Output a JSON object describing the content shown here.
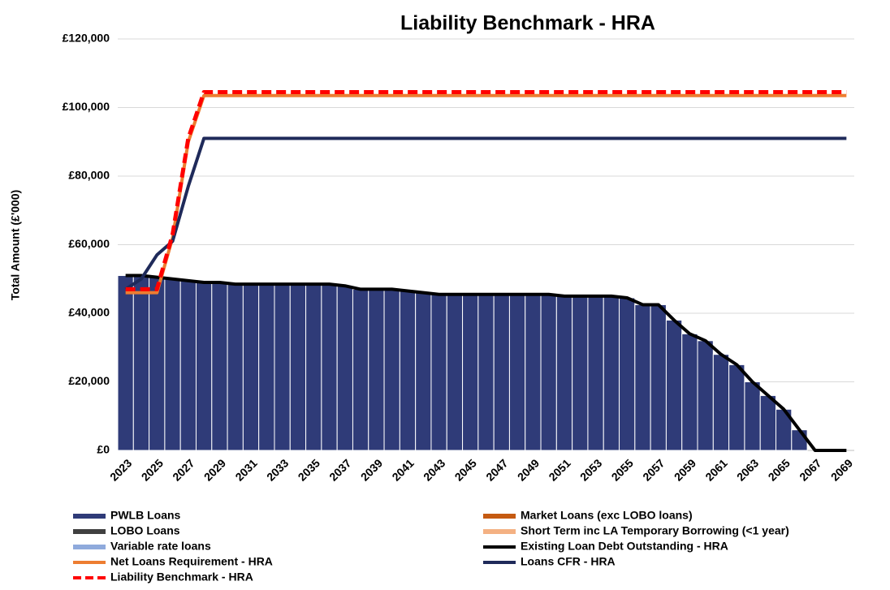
{
  "chart_data": {
    "type": "combo",
    "title": "Liability Benchmark - HRA",
    "y_label": "Total Amount (£'000)",
    "categories": [
      "2023",
      null,
      "2025",
      null,
      "2027",
      null,
      "2029",
      null,
      "2031",
      null,
      "2033",
      null,
      "2035",
      null,
      "2037",
      null,
      "2039",
      null,
      "2041",
      null,
      "2043",
      null,
      "2045",
      null,
      "2047",
      null,
      "2049",
      null,
      "2051",
      null,
      "2053",
      null,
      "2055",
      null,
      "2057",
      null,
      "2059",
      null,
      "2061",
      null,
      "2063",
      null,
      "2065",
      null,
      "2067",
      null,
      "2069"
    ],
    "ylim": [
      0,
      120000
    ],
    "yticks": [
      {
        "value": 0,
        "label": "£0"
      },
      {
        "value": 20000,
        "label": "£20,000"
      },
      {
        "value": 40000,
        "label": "£40,000"
      },
      {
        "value": 60000,
        "label": "£60,000"
      },
      {
        "value": 80000,
        "label": "£80,000"
      },
      {
        "value": 100000,
        "label": "£100,000"
      },
      {
        "value": 120000,
        "label": "£120,000"
      }
    ],
    "grid": true,
    "series": [
      {
        "name": "PWLB Loans",
        "type": "bar",
        "color": "#2f3b78",
        "values": [
          51000,
          51000,
          50500,
          50000,
          49500,
          49000,
          49000,
          48500,
          48500,
          48500,
          48500,
          48500,
          48500,
          48500,
          48000,
          47000,
          47000,
          47000,
          46500,
          46000,
          45500,
          45500,
          45500,
          45500,
          45500,
          45500,
          45500,
          45500,
          45000,
          45000,
          45000,
          45000,
          44500,
          42500,
          42500,
          38000,
          34000,
          32000,
          28000,
          25000,
          20000,
          16000,
          12000,
          6000,
          0,
          0,
          0
        ]
      },
      {
        "name": "Market Loans (exc LOBO loans)",
        "type": "bar",
        "color": "#c55a11",
        "values": [
          0,
          0,
          0,
          0,
          0,
          0,
          0,
          0,
          0,
          0,
          0,
          0,
          0,
          0,
          0,
          0,
          0,
          0,
          0,
          0,
          0,
          0,
          0,
          0,
          0,
          0,
          0,
          0,
          0,
          0,
          0,
          0,
          0,
          0,
          0,
          0,
          0,
          0,
          0,
          0,
          0,
          0,
          0,
          0,
          0,
          0,
          0
        ]
      },
      {
        "name": "LOBO Loans",
        "type": "bar",
        "color": "#404040",
        "values": [
          0,
          0,
          0,
          0,
          0,
          0,
          0,
          0,
          0,
          0,
          0,
          0,
          0,
          0,
          0,
          0,
          0,
          0,
          0,
          0,
          0,
          0,
          0,
          0,
          0,
          0,
          0,
          0,
          0,
          0,
          0,
          0,
          0,
          0,
          0,
          0,
          0,
          0,
          0,
          0,
          0,
          0,
          0,
          0,
          0,
          0,
          0
        ]
      },
      {
        "name": "Short Term inc LA Temporary Borrowing (<1 year)",
        "type": "bar",
        "color": "#f4b183",
        "values": [
          0,
          0,
          0,
          0,
          0,
          0,
          0,
          0,
          0,
          0,
          0,
          0,
          0,
          0,
          0,
          0,
          0,
          0,
          0,
          0,
          0,
          0,
          0,
          0,
          0,
          0,
          0,
          0,
          0,
          0,
          0,
          0,
          0,
          0,
          0,
          0,
          0,
          0,
          0,
          0,
          0,
          0,
          0,
          0,
          0,
          0,
          0
        ]
      },
      {
        "name": "Variable rate loans",
        "type": "bar",
        "color": "#8faadc",
        "values": [
          0,
          0,
          0,
          0,
          0,
          0,
          0,
          0,
          0,
          0,
          0,
          0,
          0,
          0,
          0,
          0,
          0,
          0,
          0,
          0,
          0,
          0,
          0,
          0,
          0,
          0,
          0,
          0,
          0,
          0,
          0,
          0,
          0,
          0,
          0,
          0,
          0,
          0,
          0,
          0,
          0,
          0,
          0,
          0,
          0,
          0,
          0
        ]
      },
      {
        "name": "Existing Loan Debt Outstanding - HRA",
        "type": "line",
        "color": "#000000",
        "values": [
          51000,
          51000,
          50500,
          50000,
          49500,
          49000,
          49000,
          48500,
          48500,
          48500,
          48500,
          48500,
          48500,
          48500,
          48000,
          47000,
          47000,
          47000,
          46500,
          46000,
          45500,
          45500,
          45500,
          45500,
          45500,
          45500,
          45500,
          45500,
          45000,
          45000,
          45000,
          45000,
          44500,
          42500,
          42500,
          38000,
          34000,
          32000,
          28000,
          25000,
          20000,
          16000,
          12000,
          6000,
          0,
          0,
          0
        ]
      },
      {
        "name": "Net Loans Requirement - HRA",
        "type": "line",
        "color": "#ed7d31",
        "values": [
          46000,
          46000,
          46000,
          62000,
          90000,
          103500,
          103500,
          103500,
          103500,
          103500,
          103500,
          103500,
          103500,
          103500,
          103500,
          103500,
          103500,
          103500,
          103500,
          103500,
          103500,
          103500,
          103500,
          103500,
          103500,
          103500,
          103500,
          103500,
          103500,
          103500,
          103500,
          103500,
          103500,
          103500,
          103500,
          103500,
          103500,
          103500,
          103500,
          103500,
          103500,
          103500,
          103500,
          103500,
          103500,
          103500,
          103500
        ]
      },
      {
        "name": "Loans CFR - HRA",
        "type": "line",
        "color": "#1f2a5a",
        "values": [
          47000,
          50000,
          57000,
          61000,
          77000,
          91000,
          91000,
          91000,
          91000,
          91000,
          91000,
          91000,
          91000,
          91000,
          91000,
          91000,
          91000,
          91000,
          91000,
          91000,
          91000,
          91000,
          91000,
          91000,
          91000,
          91000,
          91000,
          91000,
          91000,
          91000,
          91000,
          91000,
          91000,
          91000,
          91000,
          91000,
          91000,
          91000,
          91000,
          91000,
          91000,
          91000,
          91000,
          91000,
          91000,
          91000,
          91000
        ]
      },
      {
        "name": "Liability Benchmark - HRA",
        "type": "line",
        "dashed": true,
        "color": "#ff0000",
        "values": [
          47000,
          47000,
          47000,
          63000,
          91000,
          104500,
          104500,
          104500,
          104500,
          104500,
          104500,
          104500,
          104500,
          104500,
          104500,
          104500,
          104500,
          104500,
          104500,
          104500,
          104500,
          104500,
          104500,
          104500,
          104500,
          104500,
          104500,
          104500,
          104500,
          104500,
          104500,
          104500,
          104500,
          104500,
          104500,
          104500,
          104500,
          104500,
          104500,
          104500,
          104500,
          104500,
          104500,
          104500,
          104500,
          104500,
          104500
        ]
      }
    ]
  }
}
